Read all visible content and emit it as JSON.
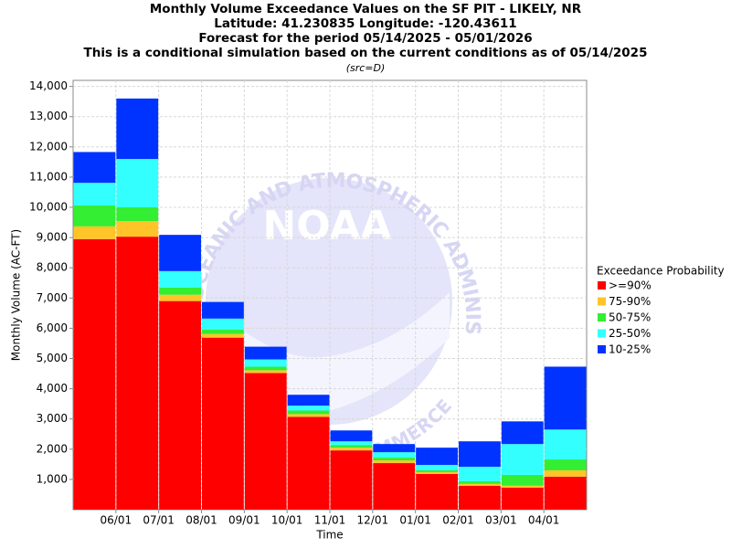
{
  "chart_data": {
    "type": "stacked_bar",
    "title": [
      "Monthly Volume Exceedance Values on the SF PIT - LIKELY, NR",
      "Latitude: 41.230835 Longitude: -120.43611",
      "Forecast for the period 05/14/2025 - 05/01/2026",
      "This is a conditional simulation based on the current conditions as of 05/14/2025"
    ],
    "subtitle": "(src=D)",
    "x_label": "Time",
    "y_label": "Monthly Volume (AC-FT)",
    "legend_title": "Exceedance Probability",
    "watermark": {
      "arc_text": "OCEANIC AND ATMOSPHERIC ADMINISTRATION",
      "logo_text": "NOAA",
      "bottom_text": "COMMERCE"
    },
    "categories": [
      null,
      null,
      null,
      null,
      null,
      null,
      null,
      null,
      null,
      null,
      null,
      null
    ],
    "boundary_labels": [
      "06/01",
      "07/01",
      "08/01",
      "09/01",
      "10/01",
      "11/01",
      "12/01",
      "01/01",
      "02/01",
      "03/01",
      "04/01"
    ],
    "series": [
      {
        "name": ">=90%",
        "color": "#ff0000",
        "values": [
          8950,
          9030,
          6900,
          5690,
          4520,
          3070,
          1960,
          1540,
          1180,
          790,
          730,
          1090
        ]
      },
      {
        "name": "75-90%",
        "color": "#ffc528",
        "values": [
          420,
          510,
          210,
          120,
          90,
          90,
          90,
          90,
          60,
          60,
          60,
          210
        ]
      },
      {
        "name": "50-75%",
        "color": "#33ee33",
        "values": [
          690,
          460,
          240,
          150,
          120,
          120,
          90,
          90,
          60,
          90,
          360,
          360
        ]
      },
      {
        "name": "25-50%",
        "color": "#33ffff",
        "values": [
          750,
          1600,
          540,
          360,
          240,
          160,
          120,
          180,
          180,
          480,
          1020,
          990
        ]
      },
      {
        "name": "10-25%",
        "color": "#0033ff",
        "values": [
          1020,
          2000,
          1200,
          550,
          420,
          360,
          360,
          270,
          570,
          840,
          750,
          2080
        ]
      }
    ],
    "ylim": [
      0,
      14200
    ],
    "yticks": [
      {
        "value": 1000,
        "label": "1,000"
      },
      {
        "value": 2000,
        "label": "2,000"
      },
      {
        "value": 3000,
        "label": "3,000"
      },
      {
        "value": 4000,
        "label": "4,000"
      },
      {
        "value": 5000,
        "label": "5,000"
      },
      {
        "value": 6000,
        "label": "6,000"
      },
      {
        "value": 7000,
        "label": "7,000"
      },
      {
        "value": 8000,
        "label": "8,000"
      },
      {
        "value": 9000,
        "label": "9,000"
      },
      {
        "value": 10000,
        "label": "10,000"
      },
      {
        "value": 11000,
        "label": "11,000"
      },
      {
        "value": 12000,
        "label": "12,000"
      },
      {
        "value": 13000,
        "label": "13,000"
      },
      {
        "value": 14000,
        "label": "14,000"
      }
    ],
    "grid": true
  }
}
